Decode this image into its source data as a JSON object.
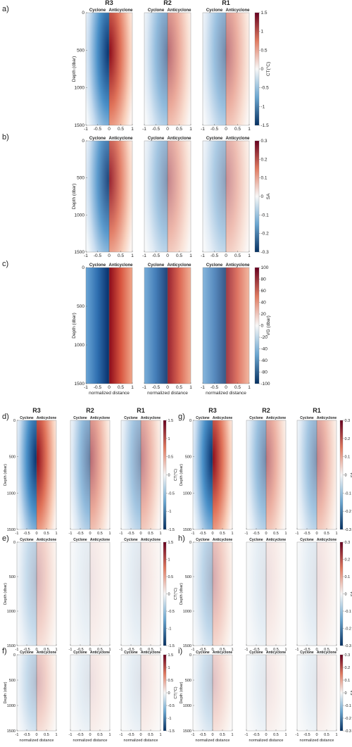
{
  "column_titles": [
    "R3",
    "R2",
    "R1"
  ],
  "side_labels": [
    "Cyclone",
    "Anticyclone"
  ],
  "depth_axis": {
    "label": "Depth (dbar)",
    "lim": [
      0,
      1500
    ],
    "ticks": [
      0,
      500,
      1000,
      1500
    ],
    "reversed": true
  },
  "distance_axis": {
    "label": "normalized distance",
    "lim": [
      -1,
      1
    ],
    "ticks": [
      -1,
      -0.5,
      0,
      0.5,
      1
    ]
  },
  "rows": [
    {
      "letter": "a)",
      "colorbar": {
        "label": "CT(°C)",
        "lim": [
          -1.5,
          1.5
        ],
        "ticks": [
          -1.5,
          -1,
          -0.5,
          0,
          0.5,
          1,
          1.5
        ]
      }
    },
    {
      "letter": "b)",
      "colorbar": {
        "label": "SA",
        "lim": [
          -0.3,
          0.3
        ],
        "ticks": [
          -0.3,
          -0.2,
          -0.1,
          0,
          0.1,
          0.2,
          0.3
        ]
      }
    },
    {
      "letter": "c)",
      "colorbar": {
        "label": "VG (dbar)",
        "lim": [
          -100,
          100
        ],
        "ticks": [
          -100,
          -80,
          -60,
          -40,
          -20,
          0,
          20,
          40,
          60,
          80,
          100
        ]
      }
    },
    {
      "letter": "d)",
      "colorbar": {
        "label": "CT(°C)",
        "lim": [
          -1.5,
          1.5
        ],
        "ticks": [
          -1.5,
          -1,
          -0.5,
          0,
          0.5,
          1,
          1.5
        ]
      }
    },
    {
      "letter": "e)",
      "colorbar": {
        "label": "CT(°C)",
        "lim": [
          -1.5,
          1.5
        ],
        "ticks": [
          -1.5,
          -1,
          -0.5,
          0,
          0.5,
          1,
          1.5
        ]
      }
    },
    {
      "letter": "f)",
      "colorbar": {
        "label": "CT(°C)",
        "lim": [
          -1.5,
          1.5
        ],
        "ticks": [
          -1.5,
          -1,
          -0.5,
          0,
          0.5,
          1,
          1.5
        ]
      }
    },
    {
      "letter": "g)",
      "colorbar": {
        "label": "SA",
        "lim": [
          -0.3,
          0.3
        ],
        "ticks": [
          -0.3,
          -0.2,
          -0.1,
          0,
          0.1,
          0.2,
          0.3
        ]
      }
    },
    {
      "letter": "h)",
      "colorbar": {
        "label": "SA",
        "lim": [
          -0.3,
          0.3
        ],
        "ticks": [
          -0.3,
          -0.2,
          -0.1,
          0,
          0.1,
          0.2,
          0.3
        ]
      }
    },
    {
      "letter": "i)",
      "colorbar": {
        "label": "SA",
        "lim": [
          -0.3,
          0.3
        ],
        "ticks": [
          -0.3,
          -0.2,
          -0.1,
          0,
          0.1,
          0.2,
          0.3
        ]
      }
    }
  ]
}
